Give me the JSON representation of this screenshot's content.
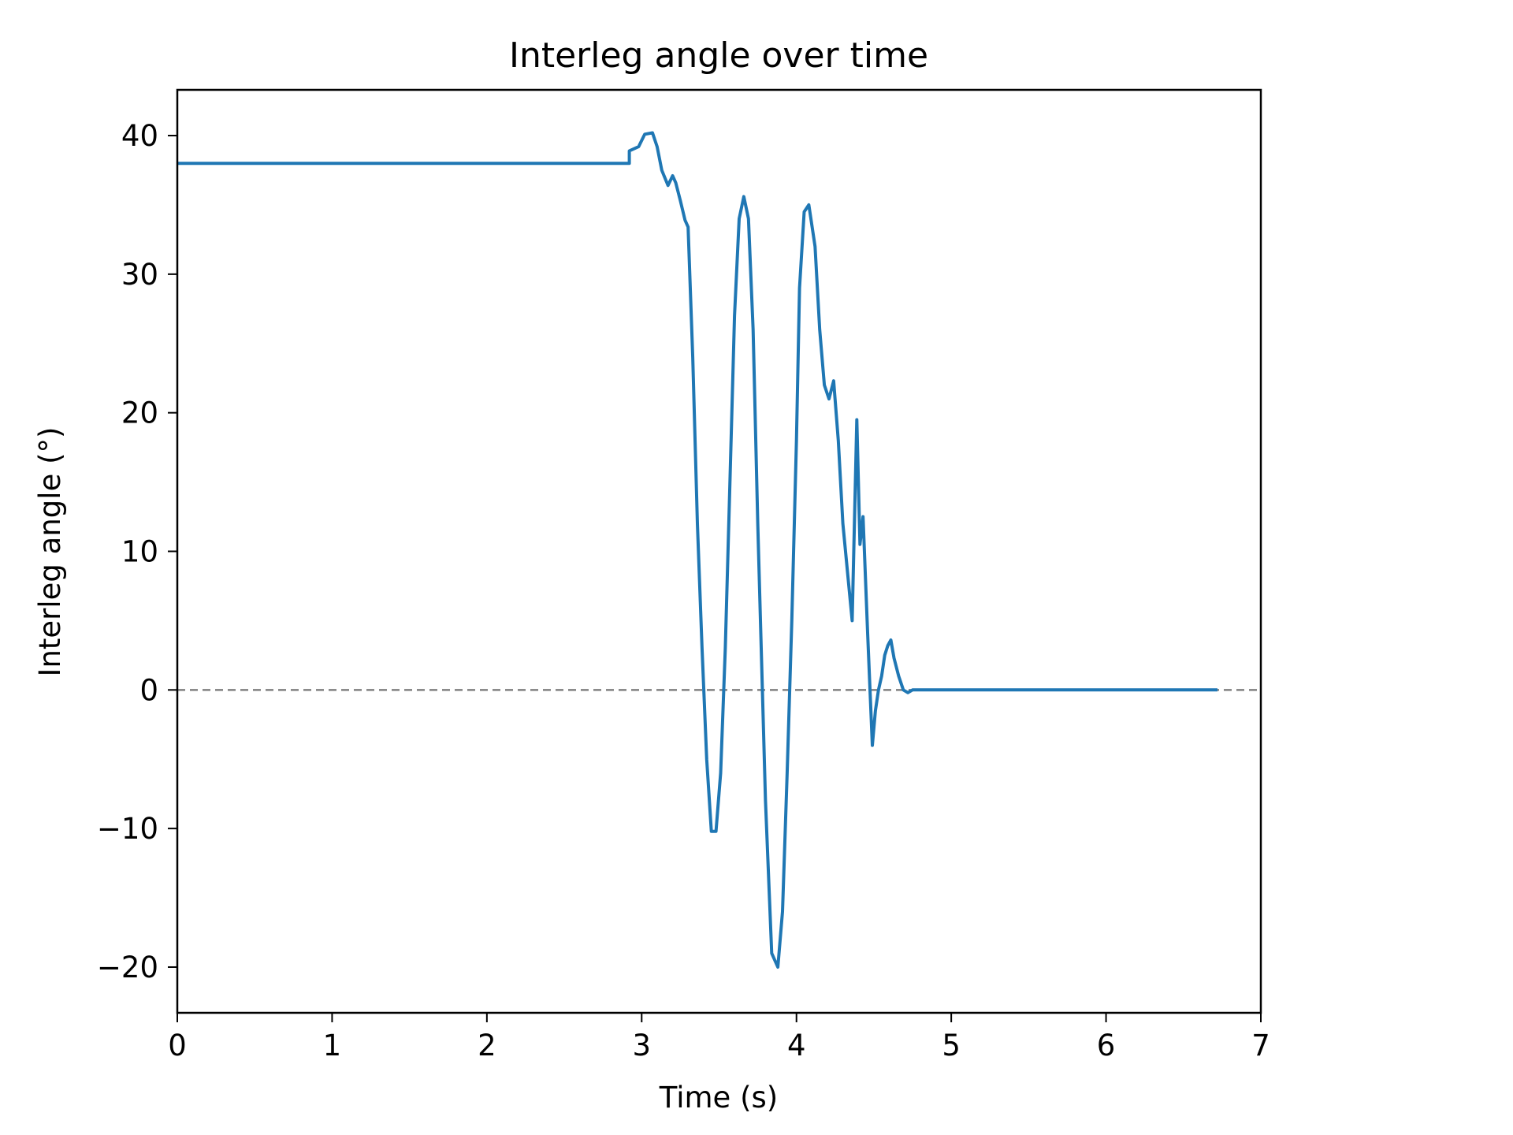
{
  "chart_data": {
    "type": "line",
    "title": "Interleg angle over time",
    "xlabel": "Time (s)",
    "ylabel": "Interleg angle (°)",
    "xlim": [
      0,
      7
    ],
    "ylim": [
      -23.3,
      43.3
    ],
    "xticks": [
      0,
      1,
      2,
      3,
      4,
      5,
      6,
      7
    ],
    "xtick_labels": [
      "0",
      "1",
      "2",
      "3",
      "4",
      "5",
      "6",
      "7"
    ],
    "yticks": [
      -20,
      -10,
      0,
      10,
      20,
      30,
      40
    ],
    "ytick_labels": [
      "−20",
      "−10",
      "0",
      "10",
      "20",
      "30",
      "40"
    ],
    "grid": false,
    "legend": "none",
    "reference_line": {
      "y": 0,
      "style": "dashed",
      "color": "#808080"
    },
    "series": [
      {
        "color": "#1f77b4",
        "x": [
          0,
          2.92,
          2.92,
          2.98,
          3.02,
          3.07,
          3.1,
          3.13,
          3.17,
          3.2,
          3.22,
          3.25,
          3.28,
          3.3,
          3.33,
          3.36,
          3.39,
          3.42,
          3.45,
          3.48,
          3.51,
          3.54,
          3.57,
          3.6,
          3.63,
          3.66,
          3.69,
          3.72,
          3.75,
          3.77,
          3.8,
          3.84,
          3.88,
          3.91,
          3.94,
          3.97,
          4.0,
          4.02,
          4.05,
          4.08,
          4.12,
          4.15,
          4.18,
          4.21,
          4.24,
          4.27,
          4.3,
          4.33,
          4.36,
          4.39,
          4.41,
          4.43,
          4.46,
          4.49,
          4.51,
          4.53,
          4.55,
          4.57,
          4.59,
          4.61,
          4.63,
          4.66,
          4.69,
          4.72,
          4.75,
          4.79,
          4.83,
          4.87,
          4.93,
          5.0,
          6.72
        ],
        "y": [
          38,
          38,
          38.9,
          39.2,
          40.1,
          40.2,
          39.2,
          37.5,
          36.4,
          37.1,
          36.6,
          35.3,
          33.9,
          33.4,
          24.0,
          12.0,
          3.0,
          -5.0,
          -10.2,
          -10.2,
          -6.0,
          3.0,
          15.0,
          27.0,
          34.0,
          35.6,
          34.0,
          26.0,
          12.0,
          4.0,
          -8.0,
          -19.0,
          -20.0,
          -16.0,
          -6.0,
          5.0,
          18.0,
          29.0,
          34.5,
          35.0,
          32.0,
          26.0,
          22.0,
          21.0,
          22.3,
          18.0,
          12.0,
          8.5,
          5.0,
          19.5,
          10.5,
          12.5,
          4.0,
          -4.0,
          -1.5,
          0.0,
          1.0,
          2.5,
          3.2,
          3.6,
          2.3,
          1.0,
          0.0,
          -0.2,
          0.0,
          0.0,
          0.0,
          0.0,
          0.0,
          0.0,
          0.0
        ]
      }
    ]
  }
}
